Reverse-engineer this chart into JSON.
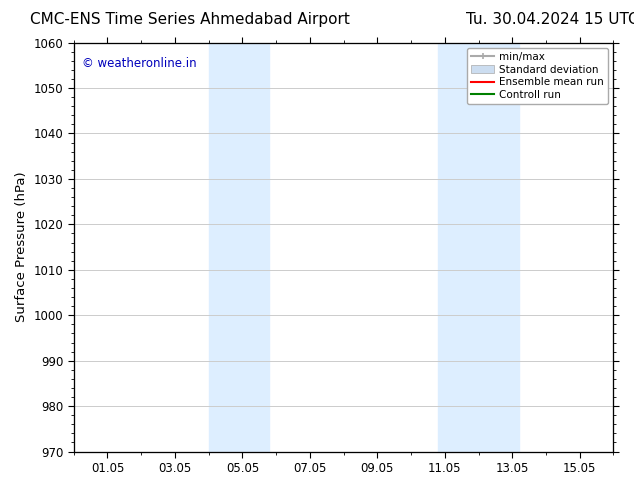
{
  "title": "CMC-ENS Time Series Ahmedabad Airport",
  "title_right": "Tu. 30.04.2024 15 UTC",
  "ylabel": "Surface Pressure (hPa)",
  "ylim": [
    970,
    1060
  ],
  "yticks": [
    970,
    980,
    990,
    1000,
    1010,
    1020,
    1030,
    1040,
    1050,
    1060
  ],
  "xtick_labels": [
    "01.05",
    "03.05",
    "05.05",
    "07.05",
    "09.05",
    "11.05",
    "13.05",
    "15.05"
  ],
  "xtick_positions": [
    1,
    3,
    5,
    7,
    9,
    11,
    13,
    15
  ],
  "xlim": [
    0,
    16
  ],
  "shaded_bands": [
    {
      "x_start": 4.0,
      "x_end": 5.8
    },
    {
      "x_start": 10.8,
      "x_end": 13.2
    }
  ],
  "shaded_color": "#ddeeff",
  "watermark": "© weatheronline.in",
  "watermark_color": "#0000bb",
  "bg_color": "#ffffff",
  "grid_color": "#cccccc",
  "title_fontsize": 11,
  "tick_fontsize": 8.5,
  "ylabel_fontsize": 9.5
}
